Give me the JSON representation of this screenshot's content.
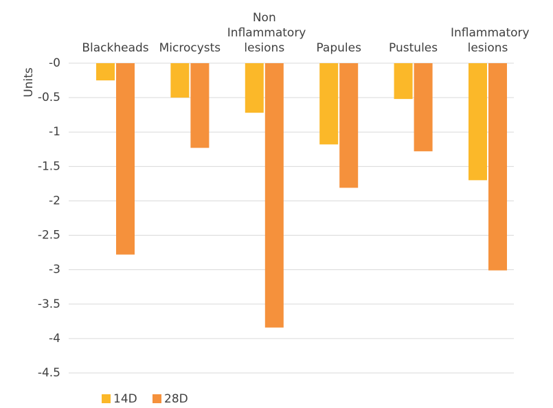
{
  "chart_data": {
    "type": "bar",
    "y_label": "Units",
    "categories": [
      "Blackheads",
      "Microcysts",
      "Non Inflammatory lesions",
      "Papules",
      "Pustules",
      "Inflammatory lesions"
    ],
    "series": [
      {
        "name": "14D",
        "color": "#fbb829",
        "values": [
          -0.25,
          -0.5,
          -0.72,
          -1.18,
          -0.52,
          -1.7
        ]
      },
      {
        "name": "28D",
        "color": "#f5913c",
        "values": [
          -2.78,
          -1.23,
          -3.84,
          -1.81,
          -1.28,
          -3.01
        ]
      }
    ],
    "ylim": [
      0,
      -4.5
    ],
    "yticks": [
      {
        "value": 0,
        "label": "-0"
      },
      -0.5,
      -1,
      -1.5,
      -2,
      -2.5,
      -3,
      -3.5,
      -4,
      -4.5
    ],
    "grid": true,
    "legend": "bottom"
  }
}
